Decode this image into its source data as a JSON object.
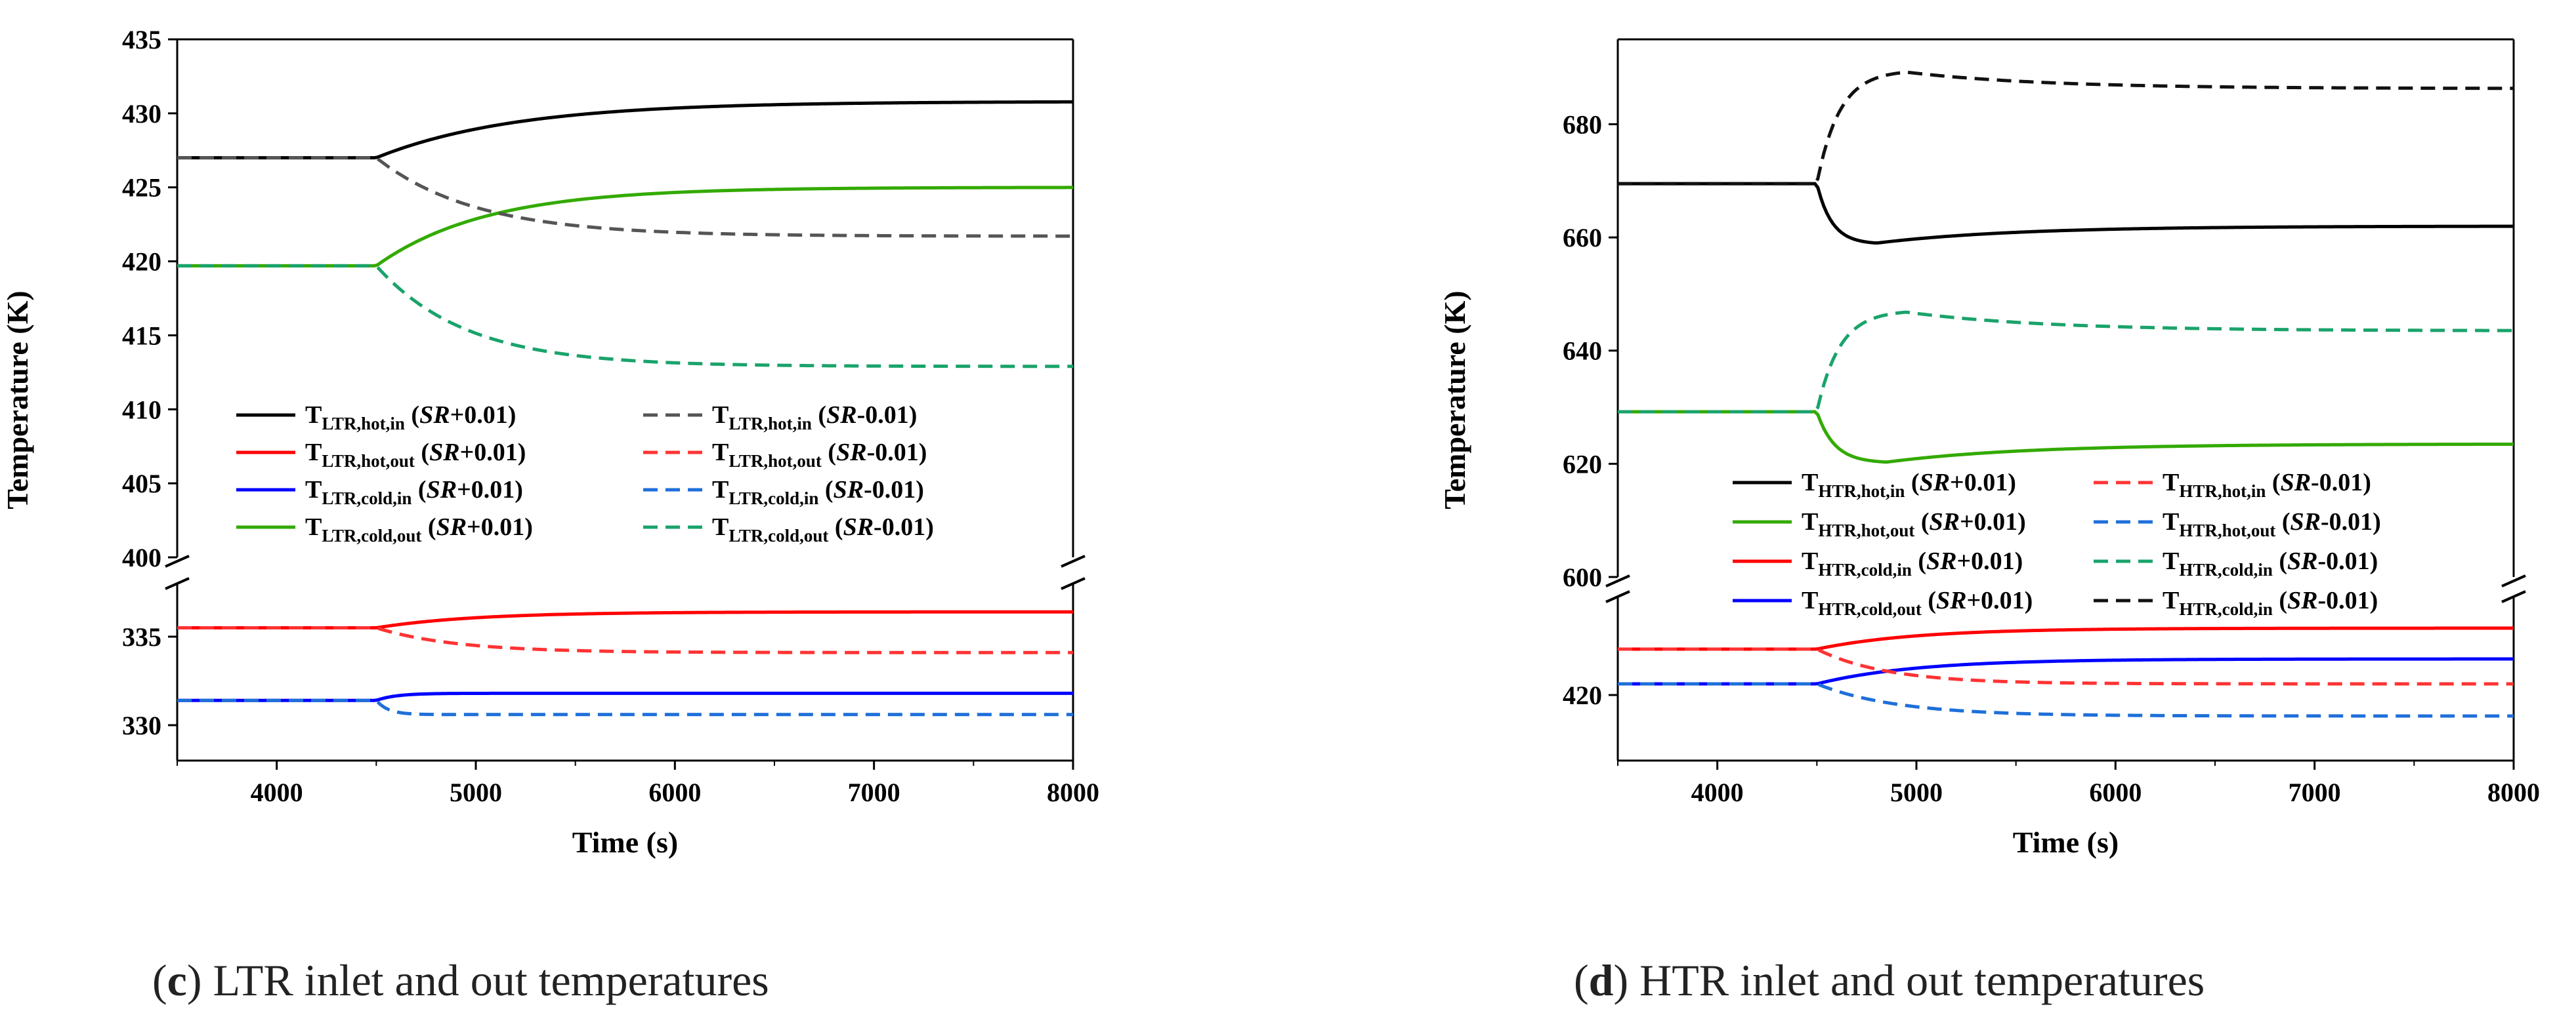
{
  "chart_data": [
    {
      "type": "line",
      "panel": "c",
      "caption": {
        "letter": "c",
        "text": "LTR inlet and out temperatures"
      },
      "xlabel": "Time (s)",
      "ylabel": "Temperature (K)",
      "xlim": [
        3500,
        8000
      ],
      "xticks": [
        4000,
        5000,
        6000,
        7000,
        8000
      ],
      "broken_y_axis": true,
      "upper_ylim": [
        400,
        435
      ],
      "upper_yticks": [
        400,
        405,
        410,
        415,
        420,
        425,
        430,
        435
      ],
      "lower_ylim": [
        328,
        338
      ],
      "lower_yticks": [
        330,
        335
      ],
      "legend_location": "lower-left of upper panel",
      "series": [
        {
          "name": "T",
          "sub": "LTR,hot,in",
          "case": "SR",
          "delta": "+0.01",
          "color": "#000000",
          "style": "solid",
          "initial": 427.0,
          "final": 430.8,
          "tau": 700
        },
        {
          "name": "T",
          "sub": "LTR,hot,out",
          "case": "SR",
          "delta": "+0.01",
          "color": "#ff0000",
          "style": "solid",
          "initial": 335.5,
          "final": 336.4,
          "tau": 500
        },
        {
          "name": "T",
          "sub": "LTR,cold,in",
          "case": "SR",
          "delta": "+0.01",
          "color": "#0000ff",
          "style": "solid",
          "initial": 331.4,
          "final": 331.8,
          "tau": 100
        },
        {
          "name": "T",
          "sub": "LTR,cold,out",
          "case": "SR",
          "delta": "+0.01",
          "color": "#33aa00",
          "style": "solid",
          "initial": 419.7,
          "final": 425.0,
          "tau": 550
        },
        {
          "name": "T",
          "sub": "LTR,hot,in",
          "case": "SR",
          "delta": "-0.01",
          "color": "#555555",
          "style": "dashed",
          "initial": 427.0,
          "final": 421.7,
          "tau": 500
        },
        {
          "name": "T",
          "sub": "LTR,hot,out",
          "case": "SR",
          "delta": "-0.01",
          "color": "#ff3333",
          "style": "dashed",
          "initial": 335.5,
          "final": 334.1,
          "tau": 400
        },
        {
          "name": "T",
          "sub": "LTR,cold,in",
          "case": "SR",
          "delta": "-0.01",
          "color": "#1e6fd9",
          "style": "dashed",
          "initial": 331.4,
          "final": 330.6,
          "tau": 60
        },
        {
          "name": "T",
          "sub": "LTR,cold,out",
          "case": "SR",
          "delta": "-0.01",
          "color": "#1aa36b",
          "style": "dashed",
          "initial": 419.7,
          "final": 412.9,
          "tau": 450
        }
      ]
    },
    {
      "type": "line",
      "panel": "d",
      "caption": {
        "letter": "d",
        "text": "HTR inlet and out temperatures"
      },
      "xlabel": "Time (s)",
      "ylabel": "Temperature (K)",
      "xlim": [
        3500,
        8000
      ],
      "xticks": [
        4000,
        5000,
        6000,
        7000,
        8000
      ],
      "broken_y_axis": true,
      "upper_ylim": [
        600,
        695
      ],
      "upper_yticks": [
        600,
        620,
        640,
        660,
        680
      ],
      "lower_ylim": [
        410,
        435
      ],
      "lower_yticks": [
        420
      ],
      "legend_location": "lower-left of upper panel",
      "series": [
        {
          "name": "T",
          "sub": "HTR,hot,in",
          "case": "SR",
          "delta": "+0.01",
          "color": "#000000",
          "style": "solid",
          "initial": 669.5,
          "final": 662.0,
          "peak": 659.0,
          "tpeak": 4800
        },
        {
          "name": "T",
          "sub": "HTR,hot,out",
          "case": "SR",
          "delta": "+0.01",
          "color": "#33aa00",
          "style": "solid",
          "initial": 629.2,
          "final": 623.5,
          "peak": 620.3,
          "tpeak": 4850
        },
        {
          "name": "T",
          "sub": "HTR,cold,in",
          "case": "SR",
          "delta": "+0.01",
          "color": "#ff0000",
          "style": "solid",
          "initial": 427.0,
          "final": 430.2,
          "tau": 500
        },
        {
          "name": "T",
          "sub": "HTR,cold,out",
          "case": "SR",
          "delta": "+0.01",
          "color": "#0000ff",
          "style": "solid",
          "initial": 421.7,
          "final": 425.5,
          "tau": 500
        },
        {
          "name": "T",
          "sub": "HTR,hot,in",
          "case": "SR",
          "delta": "-0.01",
          "color": "#ff3333",
          "style": "dashed",
          "initial": 427.0,
          "final": 421.7,
          "tau": 350
        },
        {
          "name": "T",
          "sub": "HTR,hot,out",
          "case": "SR",
          "delta": "-0.01",
          "color": "#1e6fd9",
          "style": "dashed",
          "initial": 421.7,
          "final": 416.8,
          "tau": 400
        },
        {
          "name": "T",
          "sub": "HTR,cold,in",
          "case": "SR",
          "delta": "-0.01",
          "color": "#1aa36b",
          "style": "dashed",
          "initial": 629.2,
          "final": 643.5,
          "peak": 646.8,
          "tpeak": 4950
        },
        {
          "name": "T",
          "sub": "HTR,cold,in",
          "case": "SR",
          "delta": "-0.01",
          "color": "#111111",
          "style": "dashed",
          "initial": 669.5,
          "final": 686.3,
          "peak": 689.2,
          "tpeak": 4950
        }
      ]
    }
  ]
}
